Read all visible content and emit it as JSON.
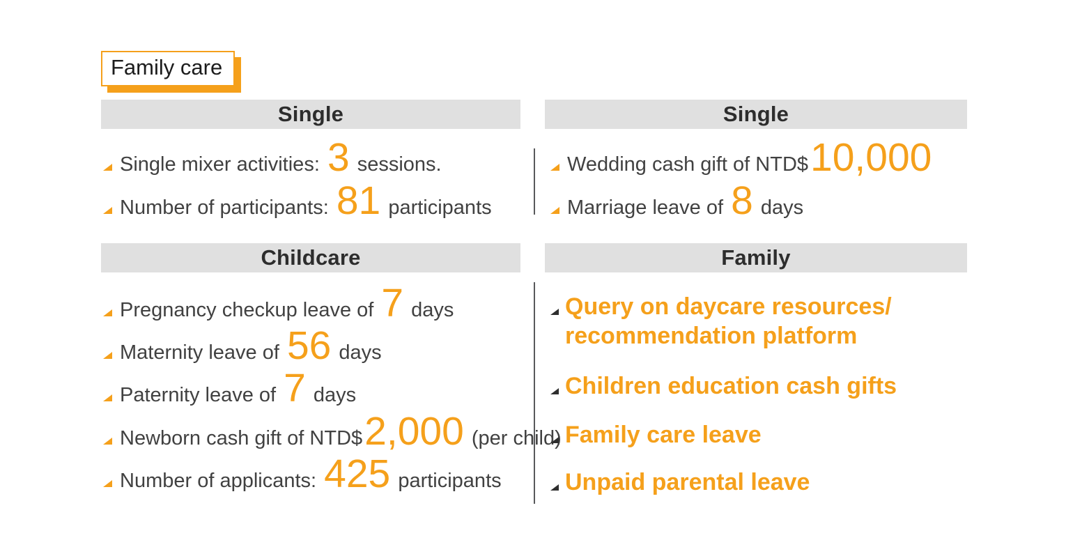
{
  "title": "Family care",
  "colors": {
    "accent_orange": "#F5A01B",
    "header_bg": "#E0E0E0",
    "header_text": "#2D2D2D",
    "body_text": "#414141",
    "divider": "#58595B"
  },
  "sections": {
    "single_left": {
      "header": "Single",
      "items": [
        {
          "pre": "Single mixer activities: ",
          "highlight": "3",
          "post": " sessions."
        },
        {
          "pre": "Number of participants: ",
          "highlight": "81",
          "post": " participants"
        }
      ]
    },
    "single_right": {
      "header": "Single",
      "items": [
        {
          "pre": "Wedding cash gift of NTD$",
          "highlight": "10,000",
          "post": ""
        },
        {
          "pre": "Marriage leave of ",
          "highlight": "8",
          "post": " days"
        }
      ]
    },
    "childcare": {
      "header": "Childcare",
      "items": [
        {
          "pre": "Pregnancy checkup leave of ",
          "highlight": "7",
          "post": " days"
        },
        {
          "pre": "Maternity leave of ",
          "highlight": "56",
          "post": " days"
        },
        {
          "pre": "Paternity leave of ",
          "highlight": "7",
          "post": " days"
        },
        {
          "pre": "Newborn cash gift of NTD$",
          "highlight": "2,000",
          "post": " (per child)"
        },
        {
          "pre": "Number of applicants: ",
          "highlight": "425",
          "post": " participants"
        }
      ]
    },
    "family": {
      "header": "Family",
      "items": [
        {
          "lines": [
            "Query on daycare resources/",
            "recommendation platform"
          ]
        },
        {
          "lines": [
            "Children education cash gifts"
          ]
        },
        {
          "lines": [
            "Family care leave"
          ]
        },
        {
          "lines": [
            "Unpaid parental leave"
          ]
        }
      ]
    }
  }
}
